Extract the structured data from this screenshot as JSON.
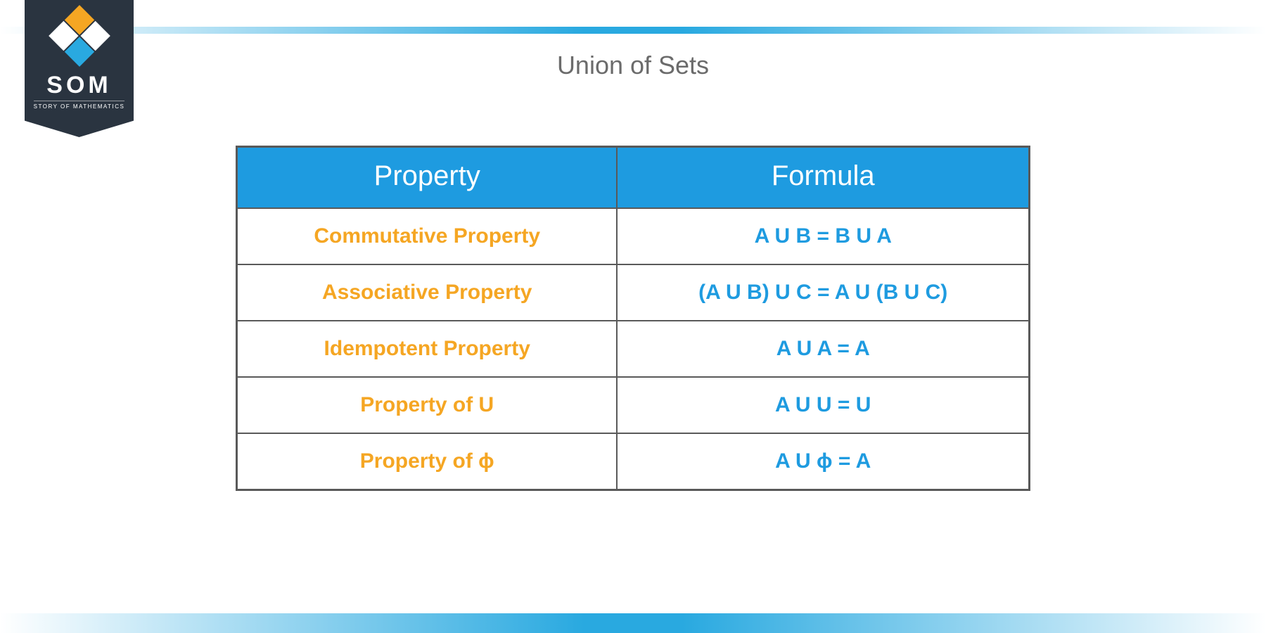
{
  "logo": {
    "brand": "SOM",
    "tagline": "STORY OF MATHEMATICS",
    "badge_bg": "#2a3440",
    "mark_colors": {
      "tl": "#f5a623",
      "tr": "#ffffff",
      "bl": "#ffffff",
      "br": "#29a9e0"
    }
  },
  "title": "Union of Sets",
  "table": {
    "header_bg": "#1e9be0",
    "header_text_color": "#ffffff",
    "property_text_color": "#f5a623",
    "formula_text_color": "#1e9be0",
    "border_color": "#595959",
    "columns": [
      "Property",
      "Formula"
    ],
    "rows": [
      {
        "property": "Commutative Property",
        "formula": "A U B = B U A"
      },
      {
        "property": "Associative Property",
        "formula": "(A U B) U C = A U (B U C)"
      },
      {
        "property": "Idempotent Property",
        "formula": "A U A = A"
      },
      {
        "property": "Property of U",
        "formula": "A U U = U"
      },
      {
        "property": "Property of ɸ",
        "formula": "A U ɸ = A"
      }
    ]
  },
  "accent_color": "#29a9e0"
}
